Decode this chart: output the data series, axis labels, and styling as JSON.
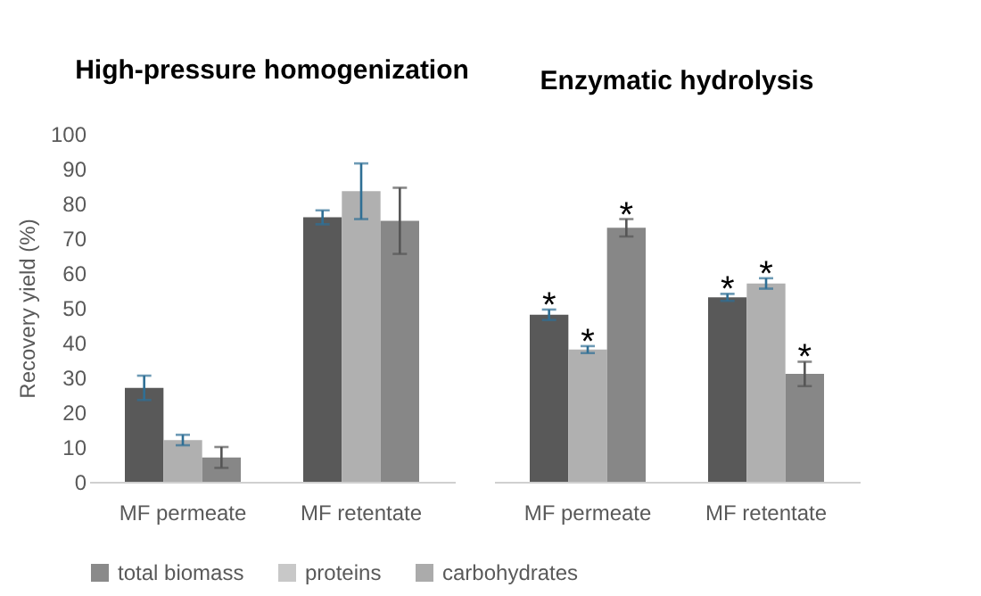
{
  "chart_data": [
    {
      "type": "bar",
      "title": "High-pressure homogenization",
      "ylabel": "Recovery yield (%)",
      "categories": [
        "MF permeate",
        "MF retentate"
      ],
      "ylim": [
        0,
        100
      ],
      "yticks": [
        0,
        10,
        20,
        30,
        40,
        50,
        60,
        70,
        80,
        90,
        100
      ],
      "legend": "bottom",
      "series": [
        {
          "name": "total biomass",
          "color": "#595959",
          "values": [
            27,
            76
          ],
          "errors": [
            3.5,
            2
          ]
        },
        {
          "name": "proteins",
          "color": "#b0b0b0",
          "values": [
            12,
            83.5
          ],
          "errors": [
            1.5,
            8
          ]
        },
        {
          "name": "carbohydrates",
          "color": "#878787",
          "values": [
            7,
            75
          ],
          "errors": [
            3,
            9.5
          ]
        }
      ]
    },
    {
      "type": "bar",
      "title": "Enzymatic hydrolysis",
      "categories": [
        "MF permeate",
        "MF retentate"
      ],
      "ylim": [
        0,
        100
      ],
      "tick_labels": "x",
      "legend": "bottom",
      "series": [
        {
          "name": "total biomass",
          "color": "#595959",
          "values": [
            48,
            53
          ],
          "errors": [
            1.5,
            1
          ],
          "value_labels": [
            "*",
            "*"
          ]
        },
        {
          "name": "proteins",
          "color": "#b0b0b0",
          "values": [
            38,
            57
          ],
          "errors": [
            1,
            1.5
          ],
          "value_labels": [
            "*",
            "*"
          ]
        },
        {
          "name": "carbohydrates",
          "color": "#878787",
          "values": [
            73,
            31
          ],
          "errors": [
            2.5,
            3.5
          ],
          "value_labels": [
            "*",
            "*"
          ]
        }
      ]
    }
  ]
}
